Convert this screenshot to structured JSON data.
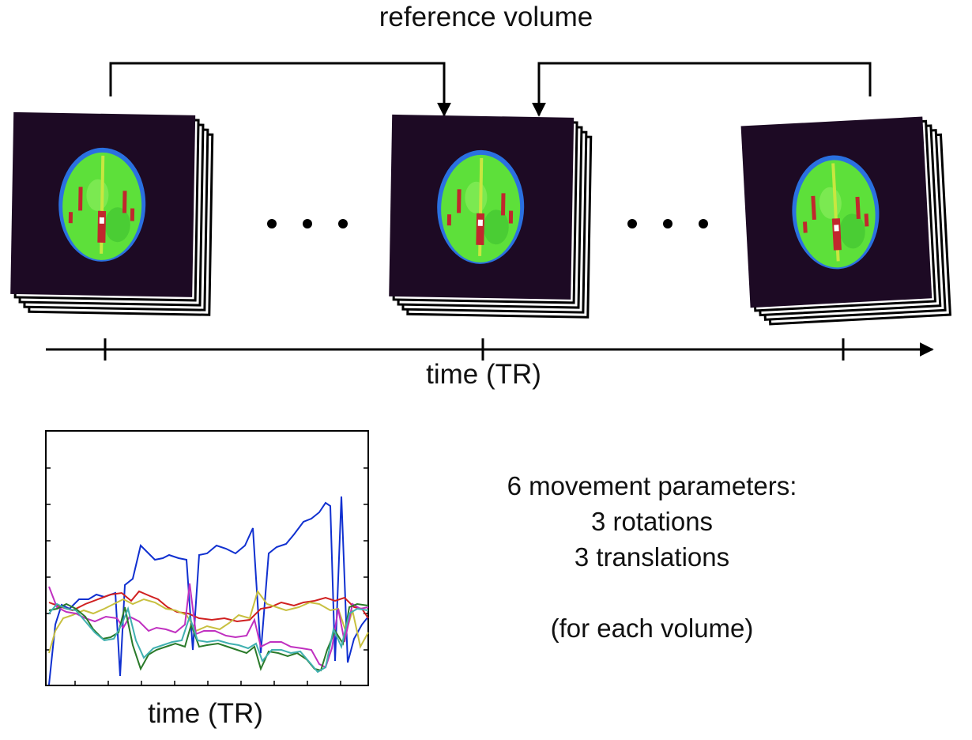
{
  "diagram": {
    "reference_label": "reference volume",
    "time_axis_label": "time (TR)",
    "ellipsis": "• • •"
  },
  "plot": {
    "xlabel": "time (TR)"
  },
  "info": {
    "line1": "6 movement parameters:",
    "line2": "3 rotations",
    "line3": "3 translations",
    "line4": "",
    "line5": "(for each volume)"
  },
  "colors": {
    "brain_green": "#5de03a",
    "brain_red": "#c1272d",
    "background_slice": "#1d0a24",
    "series_blue": "#1030d0",
    "series_red": "#d02020",
    "series_yellow": "#c8c040",
    "series_magenta": "#c030c0",
    "series_green": "#2a7a2a",
    "series_cyan": "#40b0b0"
  },
  "icons": [
    "brain-volume-icon",
    "arrow-icon"
  ]
}
